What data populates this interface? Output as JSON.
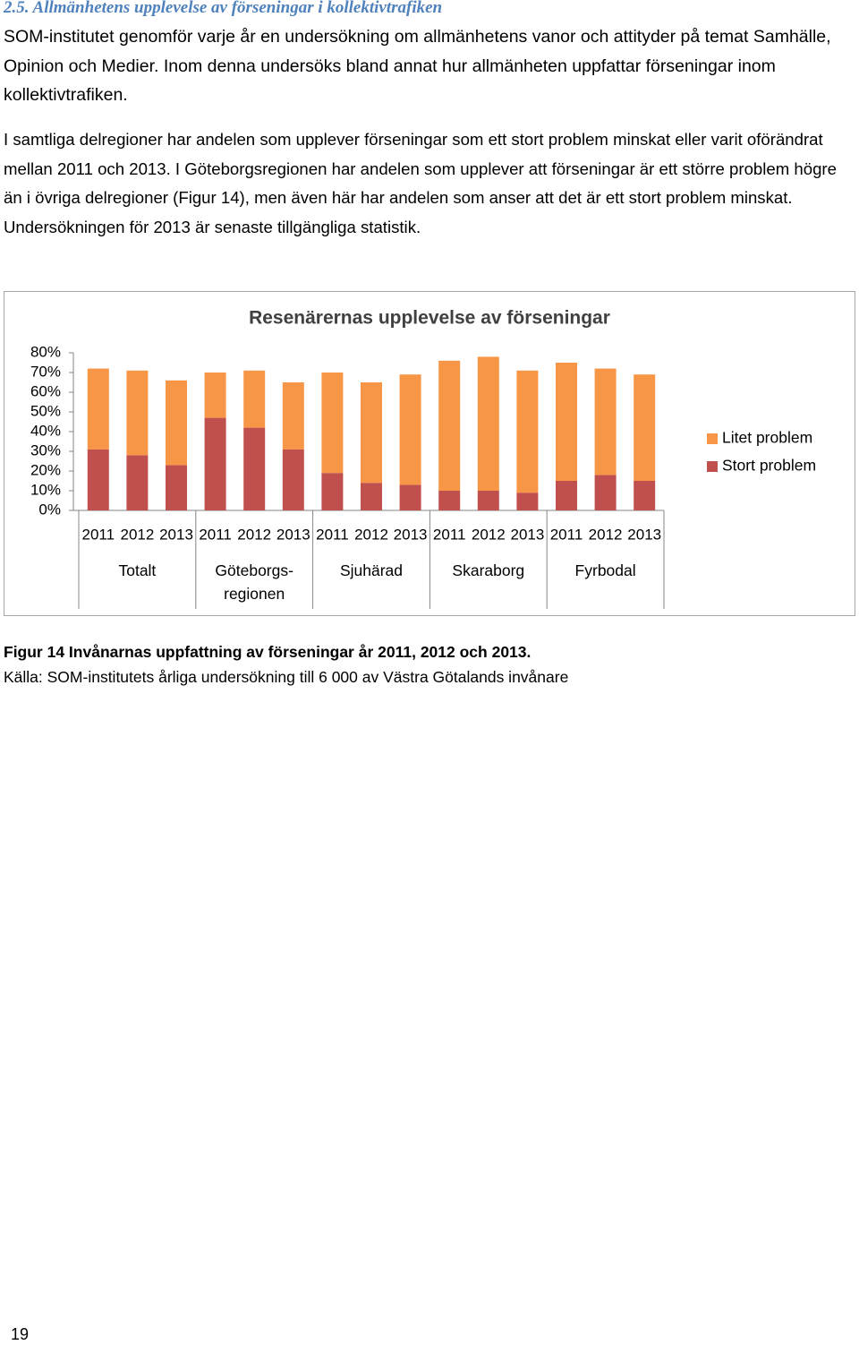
{
  "heading": "2.5. Allmänhetens upplevelse av förseningar i kollektivtrafiken",
  "paragraphs": [
    "SOM-institutet genomför varje år en undersökning om allmänhetens vanor och attityder på temat Samhälle, Opinion och Medier. Inom denna undersöks bland annat hur allmänheten uppfattar förseningar inom kollektivtrafiken.",
    "I samtliga delregioner har andelen som upplever förseningar som ett stort problem minskat eller varit oförändrat mellan 2011 och 2013. I Göteborgsregionen har andelen som upplever att förseningar är ett större problem högre än i övriga delregioner (Figur 14), men även här har andelen som anser att det är ett stort problem minskat. Undersökningen för 2013 är senaste tillgängliga statistik."
  ],
  "chart_data": {
    "type": "stacked_bar",
    "title": "Resenärernas upplevelse av förseningar",
    "categories": [
      "2011",
      "2012",
      "2013",
      "2011",
      "2012",
      "2013",
      "2011",
      "2012",
      "2013",
      "2011",
      "2012",
      "2013",
      "2011",
      "2012",
      "2013"
    ],
    "groups": [
      "Totalt",
      "Göteborgs-\nregionen",
      "Sjuhärad",
      "Skaraborg",
      "Fyrbodal"
    ],
    "series": [
      {
        "name": "Stort problem",
        "color": "#c0504d",
        "values": [
          31,
          28,
          23,
          47,
          42,
          31,
          19,
          14,
          13,
          10,
          10,
          9,
          15,
          18,
          15
        ]
      },
      {
        "name": "Litet problem",
        "color": "#f79646",
        "values": [
          41,
          43,
          43,
          23,
          29,
          34,
          51,
          51,
          56,
          66,
          68,
          62,
          60,
          54,
          54
        ]
      }
    ],
    "ylim": [
      0,
      80
    ],
    "yticks": [
      {
        "value": 0,
        "label": "0%"
      },
      {
        "value": 10,
        "label": "10%"
      },
      {
        "value": 20,
        "label": "20%"
      },
      {
        "value": 30,
        "label": "30%"
      },
      {
        "value": 40,
        "label": "40%"
      },
      {
        "value": 50,
        "label": "50%"
      },
      {
        "value": 60,
        "label": "60%"
      },
      {
        "value": 70,
        "label": "70%"
      },
      {
        "value": 80,
        "label": "80%"
      }
    ],
    "grid": false,
    "legend": "right"
  },
  "caption": {
    "figure": "Figur 14 Invånarnas uppfattning av förseningar år 2011, 2012 och 2013.",
    "source": "Källa: SOM-institutets årliga undersökning till 6 000 av Västra Götalands invånare"
  },
  "page_number": "19"
}
